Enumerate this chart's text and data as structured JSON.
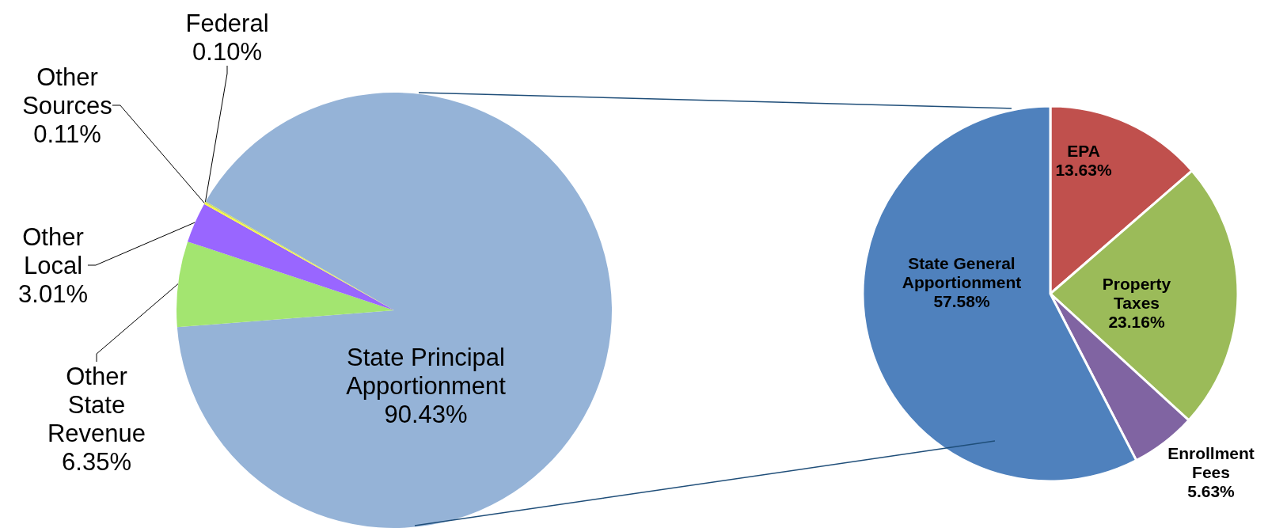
{
  "chart_data": [
    {
      "type": "pie",
      "categories": [
        "State Principal Apportionment",
        "Other State Revenue",
        "Other Local",
        "Other Sources",
        "Federal"
      ],
      "values": [
        90.43,
        6.35,
        3.01,
        0.11,
        0.1
      ],
      "colors": [
        "#95b3d7",
        "#a3e570",
        "#9966ff",
        "#ffff33",
        "#c9d96b"
      ],
      "value_labels": [
        "90.43%",
        "6.35%",
        "3.01%",
        "0.11%",
        "0.10%"
      ]
    },
    {
      "type": "pie",
      "categories": [
        "EPA",
        "Property Taxes",
        "Enrollment Fees",
        "State General Apportionment"
      ],
      "values": [
        13.63,
        23.16,
        5.63,
        57.58
      ],
      "colors": [
        "#c0504d",
        "#9bbb59",
        "#8064a2",
        "#4f81bd"
      ],
      "value_labels": [
        "13.63%",
        "23.16%",
        "5.63%",
        "57.58%"
      ]
    }
  ]
}
